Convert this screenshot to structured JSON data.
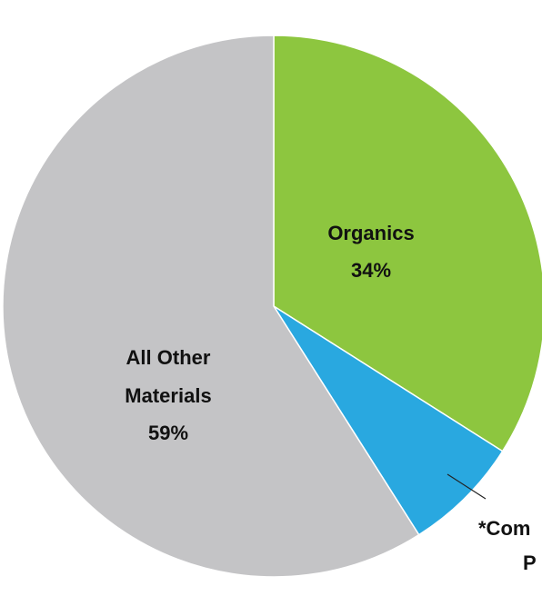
{
  "chart_data": {
    "type": "pie",
    "slices": [
      {
        "label": "Organics",
        "value": 34,
        "value_text": "34%",
        "color": "#8dc63f"
      },
      {
        "label": "*Com...",
        "value": 7,
        "value_text": "",
        "color": "#29a8e0"
      },
      {
        "label": "All Other Materials",
        "value": 59,
        "value_text": "59%",
        "color": "#c4c4c6"
      }
    ],
    "callout": {
      "line1": "*Com",
      "line2": "P"
    },
    "labels": {
      "organics_line1": "Organics",
      "organics_line2": "34%",
      "other_line1": "All Other",
      "other_line2": "Materials",
      "other_line3": "59%"
    },
    "start_angle_deg": 0,
    "direction": "clockwise"
  }
}
